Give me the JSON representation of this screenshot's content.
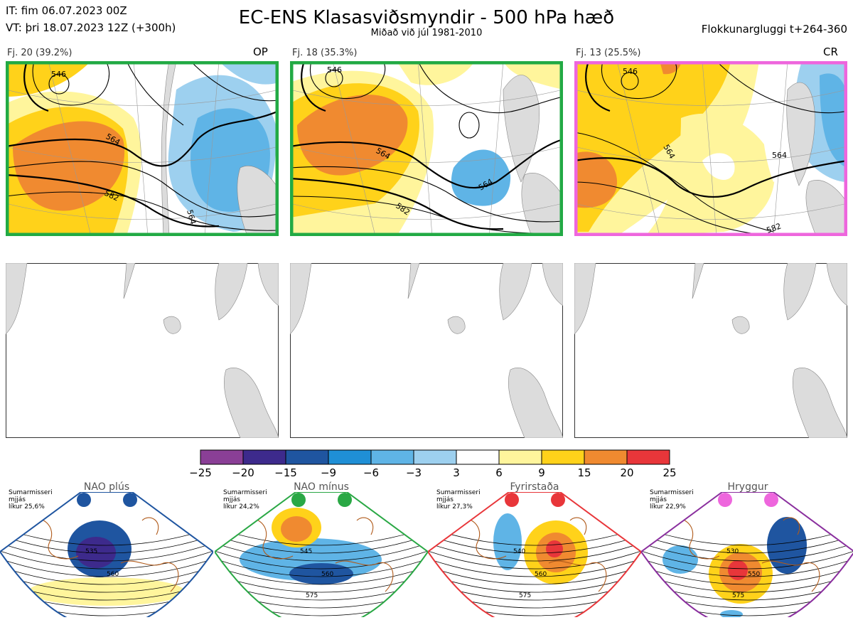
{
  "header": {
    "it_line": "IT: fim 06.07.2023 00Z",
    "vt_line": "VT: þri 18.07.2023 12Z  (+300h)",
    "title": "EC-ENS Klasasviðsmyndir - 500 hPa hæð",
    "subtitle": "Miðað við júl 1981-2010",
    "window": "Flokkunargluggi t+264-360"
  },
  "panels": [
    {
      "label": "Fj. 20 (39.2%)",
      "tag": "OP",
      "border": "#22aa44",
      "contours": {
        "a": "546",
        "b": "564",
        "c": "582",
        "d": "564"
      }
    },
    {
      "label": "Fj. 18 (35.3%)",
      "tag": "",
      "border": "#22aa44",
      "contours": {
        "a": "546",
        "b": "564",
        "c": "582",
        "d": "564"
      }
    },
    {
      "label": "Fj. 13 (25.5%)",
      "tag": "CR",
      "border": "#ee66dd",
      "contours": {
        "a": "546",
        "b": "564",
        "c": "582",
        "d": "564"
      }
    }
  ],
  "colorbar": {
    "labels": [
      "−25",
      "−20",
      "−15",
      "−9",
      "−6",
      "−3",
      "3",
      "6",
      "9",
      "15",
      "20",
      "25"
    ],
    "colors": [
      "#8a3f96",
      "#3d2a8c",
      "#1f55a0",
      "#1f8fd6",
      "#5fb4e6",
      "#9dd0ef",
      "#ffffff",
      "#fff59c",
      "#ffd21a",
      "#f08a30",
      "#e8363a",
      "#a8171d"
    ]
  },
  "regimes": [
    {
      "name": "NAO plús",
      "season": "Sumarmisseri",
      "basis": "mjjás",
      "prob": "líkur 25,6%",
      "color": "#1f55a0",
      "dot": "#1f55a0",
      "contours": [
        "535",
        "560"
      ]
    },
    {
      "name": "NAO mínus",
      "season": "Sumarmisseri",
      "basis": "mjjás",
      "prob": "líkur 24,2%",
      "color": "#2aa845",
      "dot": "#2aa845",
      "contours": [
        "545",
        "560",
        "575"
      ]
    },
    {
      "name": "Fyrirstaða",
      "season": "Sumarmisseri",
      "basis": "mjjás",
      "prob": "líkur 27,3%",
      "color": "#e8363a",
      "dot": "#e8363a",
      "contours": [
        "540",
        "560",
        "575"
      ]
    },
    {
      "name": "Hryggur",
      "season": "Sumarmisseri",
      "basis": "mjjás",
      "prob": "líkur 22,9%",
      "color": "#8a2f9e",
      "dot": "#ee66dd",
      "contours": [
        "530",
        "550",
        "575"
      ]
    }
  ]
}
